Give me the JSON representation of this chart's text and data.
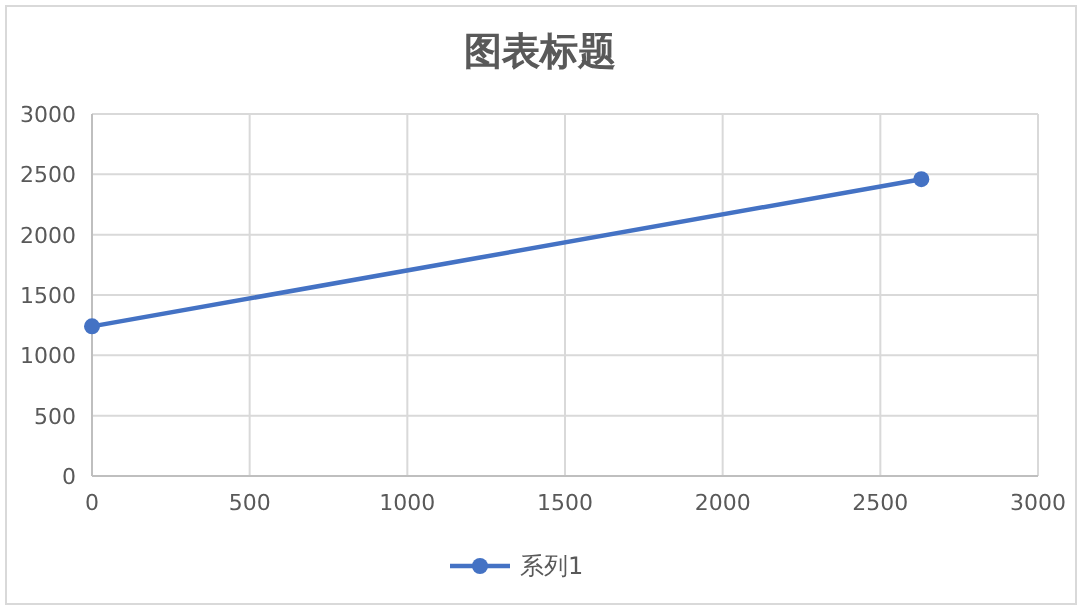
{
  "chart_data": {
    "type": "line",
    "title": "图表标题",
    "series": [
      {
        "name": "系列1",
        "color": "#4472c4",
        "x": [
          0,
          2630
        ],
        "values": [
          1240,
          2460
        ]
      }
    ],
    "xlim": [
      0,
      3000
    ],
    "ylim": [
      0,
      3000
    ],
    "xticks": [
      0,
      500,
      1000,
      1500,
      2000,
      2500,
      3000
    ],
    "yticks": [
      0,
      500,
      1000,
      1500,
      2000,
      2500,
      3000
    ],
    "grid": true,
    "legend": "bottom",
    "marker": "circle",
    "line_style": "solid"
  }
}
